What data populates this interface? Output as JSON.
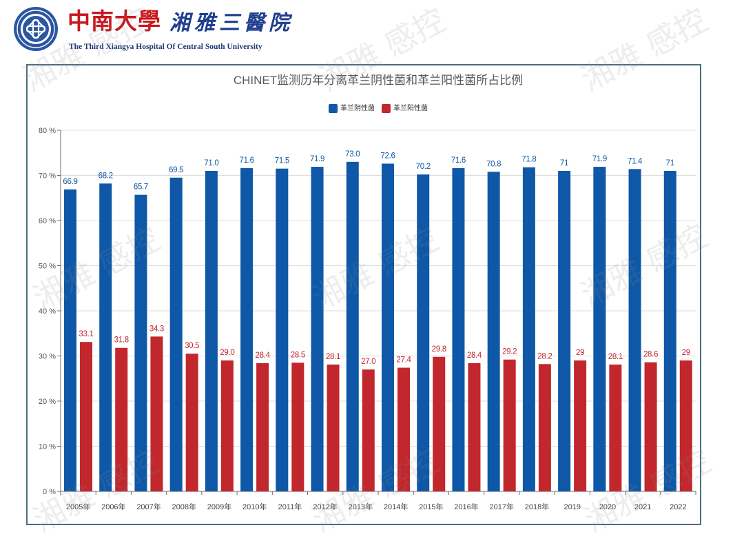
{
  "header": {
    "logo_icon": "university-seal-icon",
    "name_cn": "中南大學",
    "hospital_cn": "湘雅三醫院",
    "name_en": "The Third Xiangya Hospital Of Central South University",
    "colors": {
      "name_cn": "#c9161d",
      "hospital_cn": "#1f3f8f",
      "name_en": "#1c3874",
      "logo": "#2a56a3"
    }
  },
  "watermark": {
    "text": "湘雅 感控"
  },
  "chart_data": {
    "type": "bar",
    "title": "CHINET监测历年分离革兰阴性菌和革兰阳性菌所占比例",
    "categories": [
      "2005年",
      "2006年",
      "2007年",
      "2008年",
      "2009年",
      "2010年",
      "2011年",
      "2012年",
      "2013年",
      "2014年",
      "2015年",
      "2016年",
      "2017年",
      "2018年",
      "2019",
      "2020",
      "2021",
      "2022"
    ],
    "ylim": [
      0,
      80
    ],
    "y_ticks": [
      0,
      10,
      20,
      30,
      40,
      50,
      60,
      70,
      80
    ],
    "y_tick_labels": [
      "0 %",
      "10 %",
      "20 %",
      "30 %",
      "40 %",
      "50 %",
      "60 %",
      "70 %",
      "80 %"
    ],
    "grid": true,
    "legend_position": "top-center",
    "series": [
      {
        "name": "革兰阴性菌",
        "color": "#0e58a7",
        "values": [
          66.9,
          68.2,
          65.7,
          69.5,
          71.0,
          71.6,
          71.5,
          71.9,
          73.0,
          72.6,
          70.2,
          71.6,
          70.8,
          71.8,
          71,
          71.9,
          71.4,
          71
        ],
        "labels": [
          "66.9",
          "68.2",
          "65.7",
          "69.5",
          "71.0",
          "71.6",
          "71.5",
          "71.9",
          "73.0",
          "72.6",
          "70.2",
          "71.6",
          "70.8",
          "71.8",
          "71",
          "71.9",
          "71.4",
          "71"
        ]
      },
      {
        "name": "革兰阳性菌",
        "color": "#c1272d",
        "values": [
          33.1,
          31.8,
          34.3,
          30.5,
          29.0,
          28.4,
          28.5,
          28.1,
          27.0,
          27.4,
          29.8,
          28.4,
          29.2,
          28.2,
          29,
          28.1,
          28.6,
          29
        ],
        "labels": [
          "33.1",
          "31.8",
          "34.3",
          "30.5",
          "29.0",
          "28.4",
          "28.5",
          "28.1",
          "27.0",
          "27.4",
          "29.8",
          "28.4",
          "29.2",
          "28.2",
          "29",
          "28.1",
          "28.6",
          "29"
        ]
      }
    ]
  }
}
